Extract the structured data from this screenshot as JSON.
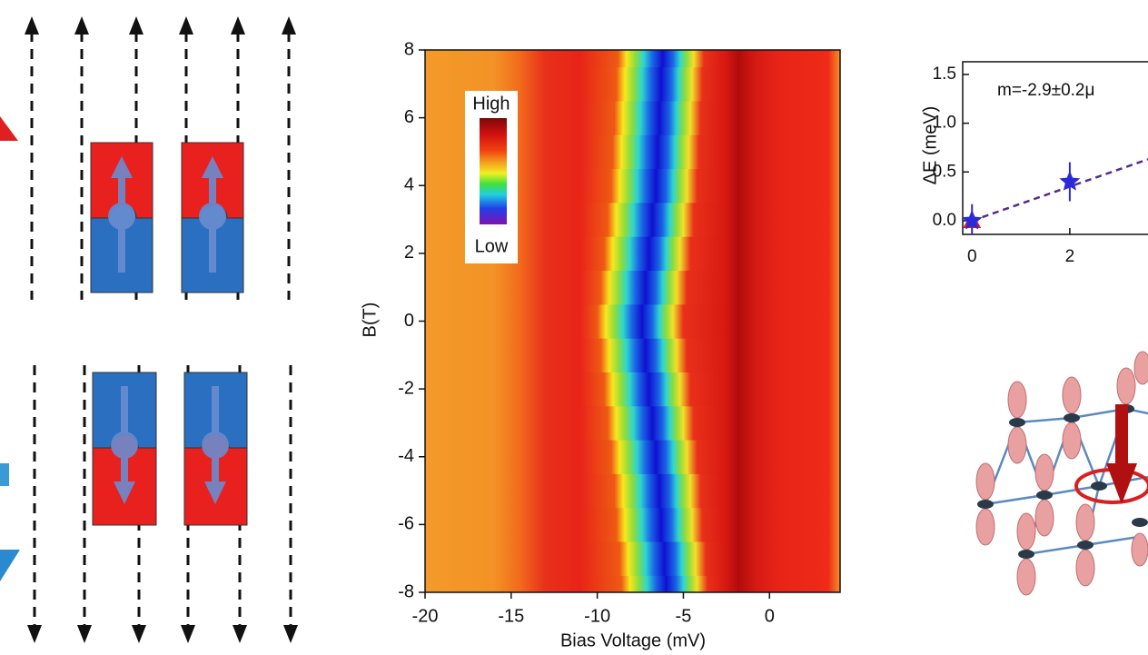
{
  "chart_data": [
    {
      "type": "heatmap",
      "xlabel": "Bias Voltage (mV)",
      "ylabel": "B(T)",
      "xlim": [
        -20,
        4.1
      ],
      "ylim": [
        -8,
        8
      ],
      "xticks": [
        -20,
        -15,
        -10,
        -5,
        0
      ],
      "yticks": [
        -8,
        -6,
        -4,
        -2,
        0,
        2,
        4,
        6,
        8
      ],
      "rows_B": [
        -8,
        -7,
        -6,
        -5,
        -4,
        -3,
        -2,
        -1,
        0,
        1,
        2,
        3,
        4,
        5,
        6,
        7,
        8
      ],
      "dip_bias": [
        -6.0,
        -6.1,
        -6.3,
        -6.4,
        -6.6,
        -6.8,
        -7.0,
        -7.2,
        -7.4,
        -7.2,
        -7.0,
        -6.8,
        -6.6,
        -6.5,
        -6.4,
        -6.3,
        -6.2
      ],
      "colorbar_high": "High",
      "colorbar_low": "Low"
    },
    {
      "type": "scatter",
      "ylabel": "ΔE (meV)",
      "annotation": "m=-2.9±0.2μ",
      "xlim": [
        -0.19,
        3.6
      ],
      "ylim": [
        -0.14,
        1.63
      ],
      "xticks": [
        0,
        2
      ],
      "yticks": [
        {
          "value": 0,
          "label": "0.0"
        },
        {
          "value": 0.5,
          "label": "0.5"
        },
        {
          "value": 1,
          "label": "1.0"
        },
        {
          "value": 1.5,
          "label": "1.5"
        }
      ],
      "x": [
        0,
        2
      ],
      "values": [
        0,
        0.4
      ],
      "errors": [
        0.17,
        0.2
      ],
      "color": "#2a2ad8",
      "reference_point": {
        "x": 0,
        "y": 0,
        "color": "#d82020"
      },
      "fit": {
        "x": [
          0,
          3.6
        ],
        "values": [
          0,
          0.63
        ],
        "color": "#5a2a8a"
      }
    }
  ]
}
